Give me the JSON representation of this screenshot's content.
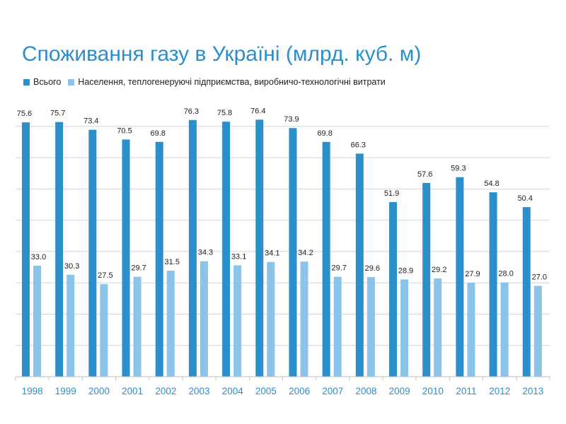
{
  "chart_data": {
    "type": "bar",
    "title": "Споживання газу в Україні (млрд. куб. м)",
    "categories": [
      "1998",
      "1999",
      "2000",
      "2001",
      "2002",
      "2003",
      "2004",
      "2005",
      "2006",
      "2007",
      "2008",
      "2009",
      "2010",
      "2011",
      "2012",
      "2013"
    ],
    "series": [
      {
        "name": "Всього",
        "color": "#2b8fcc",
        "values": [
          75.6,
          75.7,
          73.4,
          70.5,
          69.8,
          76.3,
          75.8,
          76.4,
          73.9,
          69.8,
          66.3,
          51.9,
          57.6,
          59.3,
          54.8,
          50.4
        ]
      },
      {
        "name": "Населення, теплогенеруючі підприємства, виробничо-технологічні витрати",
        "color": "#8cc3e8",
        "values": [
          33.0,
          30.3,
          27.5,
          29.7,
          31.5,
          34.3,
          33.1,
          34.1,
          34.2,
          29.7,
          29.6,
          28.9,
          29.2,
          27.9,
          28.0,
          27.0
        ]
      }
    ],
    "ylim": [
      0,
      80
    ],
    "grid": true,
    "legend_position": "top-left"
  }
}
